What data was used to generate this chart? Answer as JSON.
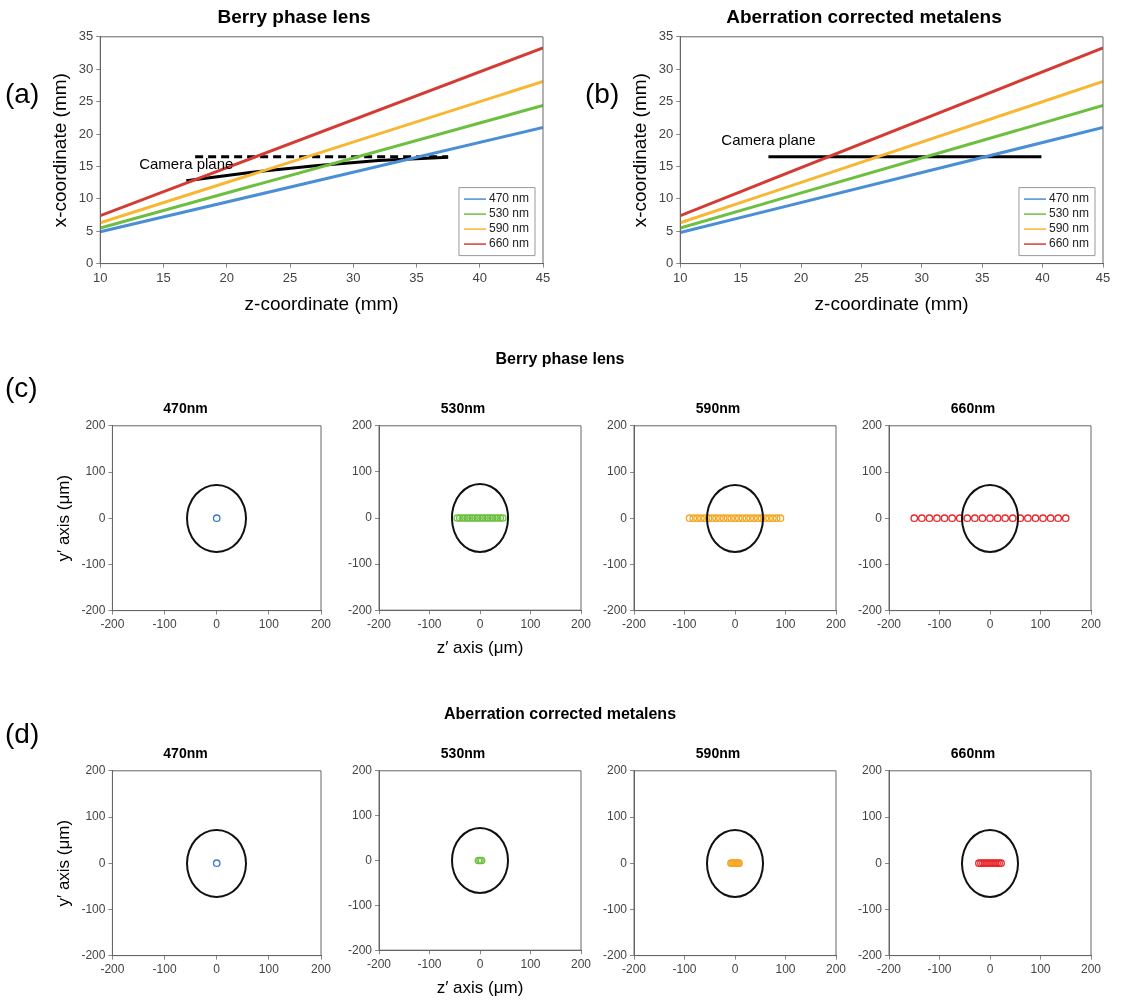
{
  "chart_data": [
    {
      "type": "line",
      "title": "Berry phase lens",
      "xlabel": "z-coordinate (mm)",
      "ylabel": "x-coordinate (mm)",
      "xlim": [
        10,
        45
      ],
      "ylim": [
        0,
        35
      ],
      "xticks": [
        10,
        15,
        20,
        25,
        30,
        35,
        40,
        45
      ],
      "yticks": [
        0,
        5,
        10,
        15,
        20,
        25,
        30,
        35
      ],
      "legend": "bottom right",
      "marker": "none",
      "annotations": [
        "(a)",
        "Camera plane"
      ],
      "series": [
        {
          "name": "470 nm",
          "color": "#4a8fd6",
          "x": [
            10,
            45
          ],
          "values": [
            4.9,
            21.0
          ]
        },
        {
          "name": "530 nm",
          "color": "#6cbf3f",
          "x": [
            10,
            45
          ],
          "values": [
            5.5,
            24.4
          ]
        },
        {
          "name": "590 nm",
          "color": "#f7b733",
          "x": [
            10,
            45
          ],
          "values": [
            6.3,
            28.1
          ]
        },
        {
          "name": "660 nm",
          "color": "#d43c33",
          "x": [
            10,
            45
          ],
          "values": [
            7.4,
            33.3
          ]
        },
        {
          "color": "#000000",
          "x": [
            16.8,
            22,
            27,
            32,
            37.5
          ],
          "values": [
            12.8,
            14.1,
            15.1,
            15.9,
            16.4
          ]
        },
        {
          "color": "#000000",
          "line_style": "dashed",
          "x": [
            17.5,
            37.5
          ],
          "values": [
            16.5,
            16.5
          ]
        }
      ]
    },
    {
      "type": "line",
      "title": "Aberration corrected metalens",
      "xlabel": "z-coordinate (mm)",
      "ylabel": "x-coordinate (mm)",
      "xlim": [
        10,
        45
      ],
      "ylim": [
        0,
        35
      ],
      "xticks": [
        10,
        15,
        20,
        25,
        30,
        35,
        40,
        45
      ],
      "yticks": [
        0,
        5,
        10,
        15,
        20,
        25,
        30,
        35
      ],
      "legend": "bottom right",
      "marker": "none",
      "annotations": [
        "(b)",
        "Camera plane"
      ],
      "series": [
        {
          "name": "470 nm",
          "color": "#4a8fd6",
          "x": [
            10,
            45
          ],
          "values": [
            4.8,
            21.0
          ]
        },
        {
          "name": "530 nm",
          "color": "#6cbf3f",
          "x": [
            10,
            45
          ],
          "values": [
            5.5,
            24.4
          ]
        },
        {
          "name": "590 nm",
          "color": "#f7b733",
          "x": [
            10,
            45
          ],
          "values": [
            6.3,
            28.1
          ]
        },
        {
          "name": "660 nm",
          "color": "#d43c33",
          "x": [
            10,
            45
          ],
          "values": [
            7.4,
            33.3
          ]
        },
        {
          "color": "#000000",
          "x": [
            17.3,
            39.9
          ],
          "values": [
            16.5,
            16.5
          ]
        }
      ]
    },
    {
      "type": "scatter",
      "title": "470nm",
      "ylabel": "y′ axis (μm)",
      "xlim": [
        -200,
        200
      ],
      "ylim": [
        -200,
        200
      ],
      "xticks": [
        -200,
        -100,
        0,
        100,
        200
      ],
      "yticks": [
        -200,
        -100,
        0,
        100,
        200
      ],
      "marker": "circle",
      "annotations": [
        "(c)",
        "Berry phase lens"
      ],
      "series": [
        {
          "color": "#3a78c9",
          "x": [
            0
          ],
          "values": [
            0
          ]
        }
      ]
    },
    {
      "type": "scatter",
      "title": "530nm",
      "xlabel": "z′ axis (μm)",
      "xlim": [
        -200,
        200
      ],
      "ylim": [
        -200,
        200
      ],
      "xticks": [
        -200,
        -100,
        0,
        100,
        200
      ],
      "yticks": [
        -200,
        -100,
        0,
        100,
        200
      ],
      "marker": "circle",
      "series": [
        {
          "color": "#6cbf3f",
          "x": [
            -45,
            -40,
            -35,
            -30,
            -25,
            -20,
            -15,
            -10,
            -5,
            0,
            5,
            10,
            15,
            20,
            25,
            30,
            35,
            40,
            45
          ],
          "values": [
            0,
            0,
            0,
            0,
            0,
            0,
            0,
            0,
            0,
            0,
            0,
            0,
            0,
            0,
            0,
            0,
            0,
            0,
            0
          ]
        }
      ]
    },
    {
      "type": "scatter",
      "title": "590nm",
      "xlim": [
        -200,
        200
      ],
      "ylim": [
        -200,
        200
      ],
      "xticks": [
        -200,
        -100,
        0,
        100,
        200
      ],
      "yticks": [
        -200,
        -100,
        0,
        100,
        200
      ],
      "marker": "circle",
      "series": [
        {
          "color": "#f5a623",
          "x": [
            -90,
            -82.5,
            -75,
            -67.5,
            -60,
            -52.5,
            -45,
            -37.5,
            -30,
            -22.5,
            -15,
            -7.5,
            0,
            7.5,
            15,
            22.5,
            30,
            37.5,
            45,
            52.5,
            60,
            67.5,
            75,
            82.5,
            90
          ],
          "values": [
            0,
            0,
            0,
            0,
            0,
            0,
            0,
            0,
            0,
            0,
            0,
            0,
            0,
            0,
            0,
            0,
            0,
            0,
            0,
            0,
            0,
            0,
            0,
            0,
            0
          ]
        }
      ]
    },
    {
      "type": "scatter",
      "title": "660nm",
      "xlim": [
        -200,
        200
      ],
      "ylim": [
        -200,
        200
      ],
      "xticks": [
        -200,
        -100,
        0,
        100,
        200
      ],
      "yticks": [
        -200,
        -100,
        0,
        100,
        200
      ],
      "marker": "circle",
      "series": [
        {
          "color": "#e8282b",
          "x": [
            -150,
            -135,
            -120,
            -105,
            -90,
            -75,
            -60,
            -45,
            -30,
            -15,
            0,
            15,
            30,
            45,
            60,
            75,
            90,
            105,
            120,
            135,
            150
          ],
          "values": [
            0,
            0,
            0,
            0,
            0,
            0,
            0,
            0,
            0,
            0,
            0,
            0,
            0,
            0,
            0,
            0,
            0,
            0,
            0,
            0,
            0
          ]
        }
      ]
    },
    {
      "type": "scatter",
      "title": "470nm",
      "ylabel": "y′ axis (μm)",
      "xlim": [
        -200,
        200
      ],
      "ylim": [
        -200,
        200
      ],
      "xticks": [
        -200,
        -100,
        0,
        100,
        200
      ],
      "yticks": [
        -200,
        -100,
        0,
        100,
        200
      ],
      "marker": "circle",
      "annotations": [
        "(d)",
        "Aberration corrected metalens"
      ],
      "series": [
        {
          "color": "#3a78c9",
          "x": [
            0
          ],
          "values": [
            0
          ]
        }
      ]
    },
    {
      "type": "scatter",
      "title": "530nm",
      "xlabel": "z′ axis (μm)",
      "xlim": [
        -200,
        200
      ],
      "ylim": [
        -200,
        200
      ],
      "xticks": [
        -200,
        -100,
        0,
        100,
        200
      ],
      "yticks": [
        -200,
        -100,
        0,
        100,
        200
      ],
      "marker": "circle",
      "series": [
        {
          "color": "#6cbf3f",
          "x": [
            -3,
            0,
            3
          ],
          "values": [
            0,
            0,
            0
          ]
        }
      ]
    },
    {
      "type": "scatter",
      "title": "590nm",
      "xlim": [
        -200,
        200
      ],
      "ylim": [
        -200,
        200
      ],
      "xticks": [
        -200,
        -100,
        0,
        100,
        200
      ],
      "yticks": [
        -200,
        -100,
        0,
        100,
        200
      ],
      "marker": "circle",
      "series": [
        {
          "color": "#f5a623",
          "x": [
            -8,
            -6,
            -4,
            -2,
            0,
            2,
            4,
            6,
            8
          ],
          "values": [
            0,
            0,
            0,
            0,
            0,
            0,
            0,
            0,
            0
          ]
        }
      ]
    },
    {
      "type": "scatter",
      "title": "660nm",
      "xlim": [
        -200,
        200
      ],
      "ylim": [
        -200,
        200
      ],
      "xticks": [
        -200,
        -100,
        0,
        100,
        200
      ],
      "yticks": [
        -200,
        -100,
        0,
        100,
        200
      ],
      "marker": "circle",
      "series": [
        {
          "color": "#e8282b",
          "x": [
            -22,
            -18,
            -14,
            -10,
            -6,
            -2,
            2,
            6,
            10,
            14,
            18,
            22
          ],
          "values": [
            0,
            0,
            0,
            0,
            0,
            0,
            0,
            0,
            0,
            0,
            0,
            0
          ]
        }
      ]
    }
  ]
}
